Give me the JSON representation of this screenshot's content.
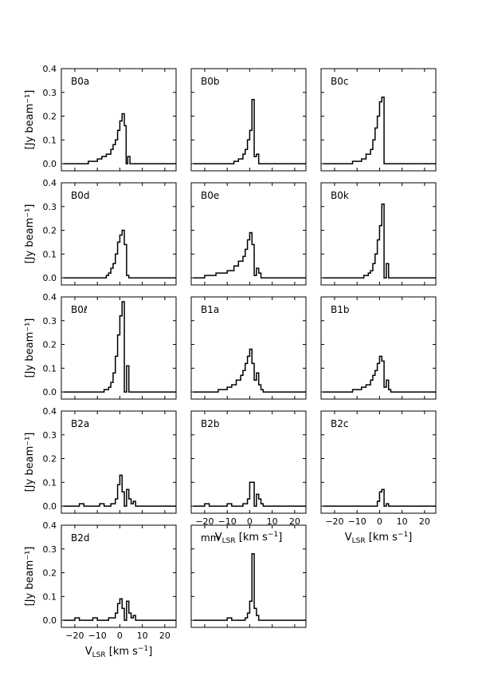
{
  "chart_data": {
    "type": "line",
    "style": "step",
    "layout": "5 rows x 3 columns grid of panels",
    "ylabel": "[Jy beam⁻¹]",
    "xlabel": "V_LSR [km s⁻¹]",
    "xlabel_parts": {
      "main": "V",
      "sub": "LSR",
      "unit": "[km s",
      "sup": "−1",
      "close": "]"
    },
    "xlim": [
      -26,
      25
    ],
    "ylim": [
      -0.03,
      0.4
    ],
    "xticks": [
      -20,
      -10,
      0,
      10,
      20
    ],
    "yticks": [
      0.0,
      0.1,
      0.2,
      0.3,
      0.4
    ],
    "xtick_labels": [
      "−20",
      "−10",
      "0",
      "10",
      "20"
    ],
    "ytick_labels": [
      "0.0",
      "0.1",
      "0.2",
      "0.3",
      "0.4"
    ],
    "grid": false,
    "panels": [
      {
        "name": "B0a",
        "values": [
          [
            -25,
            0.0
          ],
          [
            -14,
            0.01
          ],
          [
            -10,
            0.02
          ],
          [
            -8,
            0.03
          ],
          [
            -6,
            0.04
          ],
          [
            -4,
            0.06
          ],
          [
            -3,
            0.08
          ],
          [
            -2,
            0.1
          ],
          [
            -1,
            0.14
          ],
          [
            0,
            0.18
          ],
          [
            1,
            0.21
          ],
          [
            2,
            0.16
          ],
          [
            2.8,
            0.0
          ],
          [
            3.5,
            0.03
          ],
          [
            4.5,
            0.0
          ],
          [
            25,
            0.0
          ]
        ]
      },
      {
        "name": "B0b",
        "values": [
          [
            -25,
            0.0
          ],
          [
            -10,
            0.0
          ],
          [
            -7,
            0.01
          ],
          [
            -5,
            0.02
          ],
          [
            -3,
            0.04
          ],
          [
            -2,
            0.06
          ],
          [
            -1,
            0.1
          ],
          [
            0,
            0.14
          ],
          [
            1,
            0.27
          ],
          [
            2,
            0.03
          ],
          [
            3,
            0.04
          ],
          [
            4,
            0.0
          ],
          [
            25,
            0.0
          ]
        ]
      },
      {
        "name": "B0c",
        "values": [
          [
            -25,
            0.0
          ],
          [
            -12,
            0.01
          ],
          [
            -8,
            0.02
          ],
          [
            -6,
            0.04
          ],
          [
            -4,
            0.06
          ],
          [
            -3,
            0.1
          ],
          [
            -2,
            0.15
          ],
          [
            -1,
            0.2
          ],
          [
            0,
            0.26
          ],
          [
            1,
            0.28
          ],
          [
            2,
            0.0
          ],
          [
            25,
            0.0
          ]
        ]
      },
      {
        "name": "B0d",
        "values": [
          [
            -25,
            0.0
          ],
          [
            -8,
            0.0
          ],
          [
            -6,
            0.01
          ],
          [
            -5,
            0.02
          ],
          [
            -4,
            0.04
          ],
          [
            -3,
            0.06
          ],
          [
            -2,
            0.1
          ],
          [
            -1,
            0.15
          ],
          [
            0,
            0.18
          ],
          [
            1,
            0.2
          ],
          [
            2,
            0.14
          ],
          [
            3,
            0.01
          ],
          [
            4,
            0.0
          ],
          [
            25,
            0.0
          ]
        ]
      },
      {
        "name": "B0e",
        "values": [
          [
            -25,
            0.0
          ],
          [
            -20,
            0.01
          ],
          [
            -15,
            0.02
          ],
          [
            -10,
            0.03
          ],
          [
            -7,
            0.05
          ],
          [
            -5,
            0.07
          ],
          [
            -3,
            0.09
          ],
          [
            -2,
            0.12
          ],
          [
            -1,
            0.16
          ],
          [
            0,
            0.19
          ],
          [
            1,
            0.14
          ],
          [
            2,
            0.01
          ],
          [
            3,
            0.04
          ],
          [
            4,
            0.02
          ],
          [
            5,
            0.0
          ],
          [
            25,
            0.0
          ]
        ]
      },
      {
        "name": "B0k",
        "values": [
          [
            -25,
            0.0
          ],
          [
            -10,
            0.0
          ],
          [
            -7,
            0.01
          ],
          [
            -5,
            0.02
          ],
          [
            -4,
            0.03
          ],
          [
            -3,
            0.06
          ],
          [
            -2,
            0.1
          ],
          [
            -1,
            0.16
          ],
          [
            0,
            0.22
          ],
          [
            1,
            0.31
          ],
          [
            2,
            0.0
          ],
          [
            3,
            0.06
          ],
          [
            4,
            0.0
          ],
          [
            25,
            0.0
          ]
        ]
      },
      {
        "name": "B0ℓ",
        "values": [
          [
            -25,
            0.0
          ],
          [
            -7,
            0.01
          ],
          [
            -5,
            0.02
          ],
          [
            -4,
            0.04
          ],
          [
            -3,
            0.08
          ],
          [
            -2,
            0.15
          ],
          [
            -1,
            0.24
          ],
          [
            0,
            0.32
          ],
          [
            1,
            0.38
          ],
          [
            2,
            0.0
          ],
          [
            3,
            0.11
          ],
          [
            4,
            0.0
          ],
          [
            25,
            0.0
          ]
        ]
      },
      {
        "name": "B1a",
        "values": [
          [
            -25,
            0.0
          ],
          [
            -14,
            0.01
          ],
          [
            -10,
            0.02
          ],
          [
            -8,
            0.03
          ],
          [
            -6,
            0.05
          ],
          [
            -4,
            0.07
          ],
          [
            -3,
            0.09
          ],
          [
            -2,
            0.12
          ],
          [
            -1,
            0.15
          ],
          [
            0,
            0.18
          ],
          [
            1,
            0.12
          ],
          [
            2,
            0.05
          ],
          [
            3,
            0.08
          ],
          [
            4,
            0.03
          ],
          [
            5,
            0.01
          ],
          [
            6,
            0.0
          ],
          [
            25,
            0.0
          ]
        ]
      },
      {
        "name": "B1b",
        "values": [
          [
            -25,
            0.0
          ],
          [
            -12,
            0.01
          ],
          [
            -8,
            0.02
          ],
          [
            -6,
            0.03
          ],
          [
            -4,
            0.05
          ],
          [
            -3,
            0.07
          ],
          [
            -2,
            0.09
          ],
          [
            -1,
            0.12
          ],
          [
            0,
            0.15
          ],
          [
            1,
            0.13
          ],
          [
            2,
            0.02
          ],
          [
            3,
            0.05
          ],
          [
            4,
            0.01
          ],
          [
            5,
            0.0
          ],
          [
            25,
            0.0
          ]
        ]
      },
      {
        "name": "B2a",
        "values": [
          [
            -25,
            0.0
          ],
          [
            -18,
            0.01
          ],
          [
            -16,
            0.0
          ],
          [
            -9,
            0.01
          ],
          [
            -7,
            0.0
          ],
          [
            -4,
            0.01
          ],
          [
            -2,
            0.03
          ],
          [
            -1,
            0.09
          ],
          [
            0,
            0.13
          ],
          [
            1,
            0.06
          ],
          [
            2,
            0.0
          ],
          [
            3,
            0.07
          ],
          [
            4,
            0.03
          ],
          [
            5,
            0.01
          ],
          [
            6,
            0.02
          ],
          [
            7,
            0.0
          ],
          [
            25,
            0.0
          ]
        ]
      },
      {
        "name": "B2b",
        "values": [
          [
            -25,
            0.0
          ],
          [
            -20,
            0.01
          ],
          [
            -18,
            0.0
          ],
          [
            -10,
            0.01
          ],
          [
            -8,
            0.0
          ],
          [
            -3,
            0.01
          ],
          [
            -1,
            0.03
          ],
          [
            0,
            0.1
          ],
          [
            1,
            0.1
          ],
          [
            2,
            0.0
          ],
          [
            3,
            0.05
          ],
          [
            4,
            0.03
          ],
          [
            5,
            0.01
          ],
          [
            6,
            0.0
          ],
          [
            25,
            0.0
          ]
        ]
      },
      {
        "name": "B2c",
        "values": [
          [
            -25,
            0.0
          ],
          [
            -2,
            0.0
          ],
          [
            -1,
            0.02
          ],
          [
            0,
            0.06
          ],
          [
            1,
            0.07
          ],
          [
            2,
            0.0
          ],
          [
            3,
            0.01
          ],
          [
            4,
            0.0
          ],
          [
            25,
            0.0
          ]
        ]
      },
      {
        "name": "B2d",
        "values": [
          [
            -25,
            0.0
          ],
          [
            -20,
            0.01
          ],
          [
            -18,
            0.0
          ],
          [
            -12,
            0.01
          ],
          [
            -10,
            0.0
          ],
          [
            -5,
            0.01
          ],
          [
            -2,
            0.03
          ],
          [
            -1,
            0.07
          ],
          [
            0,
            0.09
          ],
          [
            1,
            0.05
          ],
          [
            2,
            0.0
          ],
          [
            3,
            0.08
          ],
          [
            4,
            0.03
          ],
          [
            5,
            0.01
          ],
          [
            6,
            0.02
          ],
          [
            7,
            0.0
          ],
          [
            25,
            0.0
          ]
        ]
      },
      {
        "name": "mm",
        "values": [
          [
            -25,
            0.0
          ],
          [
            -10,
            0.01
          ],
          [
            -8,
            0.0
          ],
          [
            -2,
            0.01
          ],
          [
            -1,
            0.03
          ],
          [
            0,
            0.08
          ],
          [
            1,
            0.28
          ],
          [
            2,
            0.05
          ],
          [
            3,
            0.02
          ],
          [
            4,
            0.0
          ],
          [
            25,
            0.0
          ]
        ]
      }
    ]
  }
}
